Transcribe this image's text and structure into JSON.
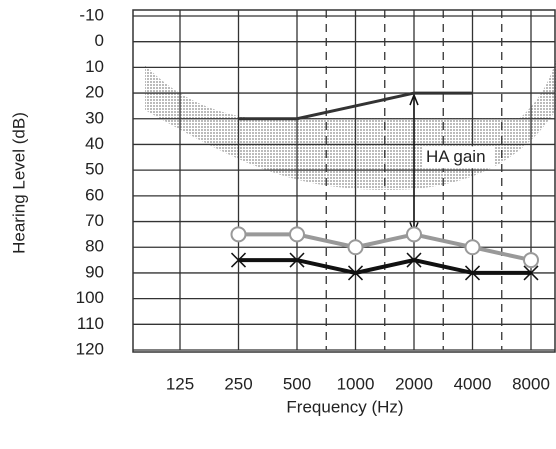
{
  "chart_data": {
    "type": "line",
    "categories": [
      "125",
      "250",
      "500",
      "1000",
      "2000",
      "4000",
      "8000"
    ],
    "series": [
      {
        "color": "#333333",
        "marker": "none",
        "values": [
          null,
          30,
          30,
          25,
          20,
          20,
          null
        ]
      },
      {
        "color": "#999999",
        "marker": "circle",
        "values": [
          null,
          75,
          75,
          80,
          75,
          80,
          85
        ]
      },
      {
        "color": "#111111",
        "marker": "cross",
        "values": [
          null,
          85,
          85,
          90,
          85,
          90,
          90
        ]
      }
    ],
    "ylim": [
      -10,
      120
    ],
    "yticks": [
      -10,
      0,
      10,
      20,
      30,
      40,
      50,
      60,
      70,
      80,
      90,
      100,
      110,
      120
    ],
    "inverted": true,
    "grid": true,
    "ylabel": "Hearing Level (dB)",
    "xlabel": "Frequency (Hz)",
    "annotation": {
      "text": "HA gain",
      "category": 4,
      "from": 20,
      "to": 75
    }
  }
}
